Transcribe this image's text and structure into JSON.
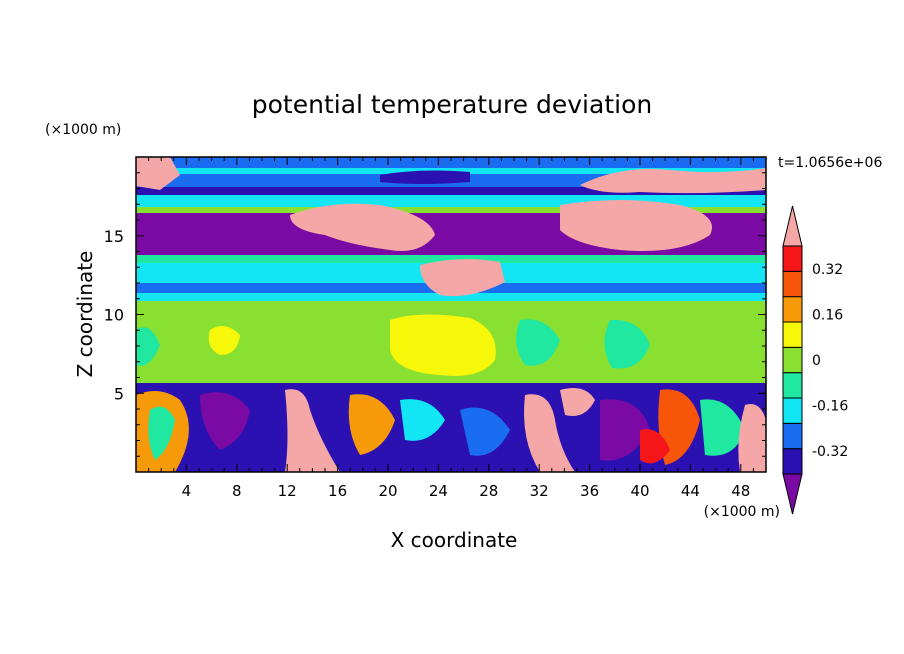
{
  "chart_data": {
    "type": "heatmap",
    "title": "potential temperature deviation",
    "xlabel": "X coordinate",
    "ylabel": "Z coordinate",
    "x_unit": "(×1000 m)",
    "y_unit": "(×1000 m)",
    "time_label": "t=1.0656e+06",
    "xlim": [
      0,
      50
    ],
    "ylim": [
      0,
      20
    ],
    "x_ticks": [
      "4",
      "8",
      "12",
      "16",
      "20",
      "24",
      "28",
      "32",
      "36",
      "40",
      "44",
      "48"
    ],
    "y_ticks": [
      "5",
      "10",
      "15"
    ],
    "colorbar": {
      "levels": [
        {
          "color": "#7a0aa3"
        },
        {
          "color": "#2b10b2"
        },
        {
          "color": "#1a6cf0"
        },
        {
          "color": "#12e6f5"
        },
        {
          "color": "#20e8a0"
        },
        {
          "color": "#8ae030"
        },
        {
          "color": "#f7f70a"
        },
        {
          "color": "#f79a0a"
        },
        {
          "color": "#f7550a"
        },
        {
          "color": "#f5161a"
        },
        {
          "color": "#f5a7a7"
        }
      ],
      "labels": [
        "0.32",
        "0.16",
        "0",
        "-0.16",
        "-0.32"
      ],
      "label_values": [
        0.32,
        0.16,
        0,
        -0.16,
        -0.32
      ]
    },
    "field_description_bands": [
      {
        "z": [
          17.2,
          20
        ],
        "dominant": "blue/cyan with pink patches"
      },
      {
        "z": [
          14,
          17.2
        ],
        "dominant": "purple with pink blobs"
      },
      {
        "z": [
          10.5,
          14
        ],
        "dominant": "cyan/blue layers"
      },
      {
        "z": [
          5.5,
          10.5
        ],
        "dominant": "green with yellow"
      },
      {
        "z": [
          0,
          5.5
        ],
        "dominant": "mixed purple/blue/orange/pink turbulence"
      }
    ]
  }
}
